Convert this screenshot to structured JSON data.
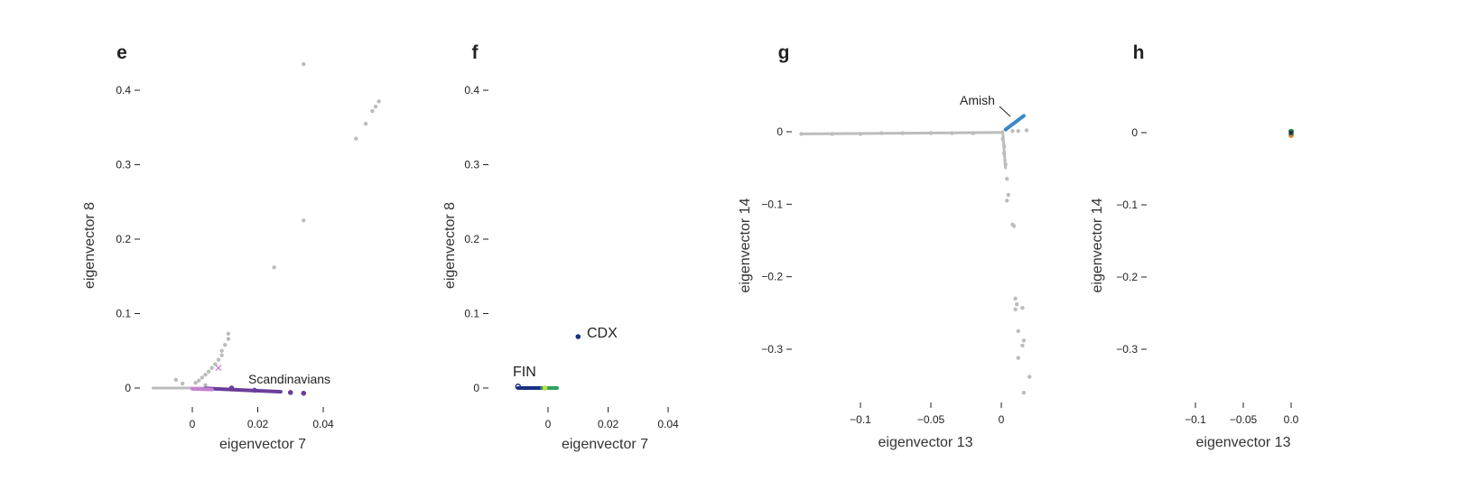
{
  "colors": {
    "grey": "#bbbdbc",
    "purple": "#6a3d9a",
    "light_purple": "#c77fd0",
    "navy": "#1a2f80",
    "green": "#2ca25f",
    "yellow_green": "#c6d93a",
    "blue": "#3a87c8",
    "orange": "#e08a2c",
    "dark_teal": "#1f5f5f"
  },
  "chart_data": [
    {
      "panel": "e",
      "type": "scatter",
      "xlabel": "eigenvector 7",
      "ylabel": "eigenvector 8",
      "xticks": [
        0,
        0.02,
        0.04
      ],
      "xtick_labels": [
        "0",
        "0.02",
        "0.04"
      ],
      "yticks": [
        0,
        0.1,
        0.2,
        0.3,
        0.4
      ],
      "ytick_labels": [
        "0",
        "0.1",
        "0.2",
        "0.3",
        "0.4"
      ],
      "xlim": [
        -0.012,
        0.066
      ],
      "ylim": [
        -0.01,
        0.44
      ],
      "annotations": [
        {
          "text": "Scandinavians"
        }
      ],
      "series": [
        {
          "color": "grey",
          "marker": "dot",
          "points": [
            [
              0.034,
              0.435
            ],
            [
              0.057,
              0.385
            ],
            [
              0.056,
              0.378
            ],
            [
              0.055,
              0.372
            ],
            [
              0.053,
              0.355
            ],
            [
              0.05,
              0.335
            ],
            [
              0.034,
              0.225
            ],
            [
              0.025,
              0.162
            ],
            [
              0.011,
              0.073
            ],
            [
              0.011,
              0.066
            ],
            [
              0.01,
              0.058
            ],
            [
              0.009,
              0.05
            ],
            [
              0.009,
              0.044
            ],
            [
              0.008,
              0.038
            ],
            [
              0.007,
              0.032
            ],
            [
              0.006,
              0.027
            ],
            [
              0.005,
              0.022
            ],
            [
              0.004,
              0.018
            ],
            [
              0.003,
              0.014
            ],
            [
              0.002,
              0.01
            ],
            [
              0.001,
              0.007
            ],
            [
              -0.005,
              0.011
            ],
            [
              -0.003,
              0.006
            ],
            [
              0.004,
              0.004
            ]
          ]
        },
        {
          "color": "grey",
          "marker": "line",
          "from": [
            -0.012,
            0.0
          ],
          "to": [
            0.005,
            0.0
          ]
        },
        {
          "color": "purple",
          "marker": "line",
          "from": [
            0.004,
            -0.0005
          ],
          "to": [
            0.027,
            -0.005
          ]
        },
        {
          "color": "purple",
          "marker": "dot",
          "points": [
            [
              0.012,
              0.0
            ],
            [
              0.019,
              -0.003
            ],
            [
              0.03,
              -0.006
            ],
            [
              0.034,
              -0.007
            ]
          ]
        },
        {
          "color": "light_purple",
          "marker": "line",
          "from": [
            0.0,
            -0.001
          ],
          "to": [
            0.006,
            -0.002
          ]
        },
        {
          "color": "light_purple",
          "marker": "cross",
          "points": [
            [
              0.008,
              0.027
            ]
          ]
        }
      ]
    },
    {
      "panel": "f",
      "type": "scatter",
      "xlabel": "eigenvector 7",
      "ylabel": "eigenvector 8",
      "xticks": [
        0,
        0.02,
        0.04
      ],
      "xtick_labels": [
        "0",
        "0.02",
        "0.04"
      ],
      "yticks": [
        0,
        0.1,
        0.2,
        0.3,
        0.4
      ],
      "ytick_labels": [
        "0",
        "0.1",
        "0.2",
        "0.3",
        "0.4"
      ],
      "xlim": [
        -0.012,
        0.045
      ],
      "ylim": [
        -0.01,
        0.44
      ],
      "annotations": [
        {
          "text": "CDX"
        },
        {
          "text": "FIN"
        }
      ],
      "series": [
        {
          "color": "navy",
          "marker": "dot",
          "points": [
            [
              0.01,
              0.069
            ]
          ]
        },
        {
          "color": "navy",
          "marker": "ring",
          "points": [
            [
              -0.01,
              0.002
            ]
          ]
        },
        {
          "color": "navy",
          "marker": "line",
          "from": [
            -0.01,
            0.0
          ],
          "to": [
            0.001,
            0.0
          ]
        },
        {
          "color": "green",
          "marker": "line",
          "from": [
            -0.002,
            0.0
          ],
          "to": [
            0.003,
            0.0
          ]
        },
        {
          "color": "yellow_green",
          "marker": "dot",
          "points": [
            [
              -0.001,
              0.0
            ]
          ]
        }
      ]
    },
    {
      "panel": "g",
      "type": "scatter",
      "xlabel": "eigenvector 13",
      "ylabel": "eigenvector 14",
      "xticks": [
        -0.1,
        -0.05,
        0
      ],
      "xtick_labels": [
        "−0.1",
        "−0.05",
        "0"
      ],
      "yticks": [
        0,
        -0.1,
        -0.2,
        -0.3
      ],
      "ytick_labels": [
        "0",
        "−0.1",
        "−0.2",
        "−0.3"
      ],
      "xlim": [
        -0.145,
        0.02
      ],
      "ylim": [
        -0.37,
        0.02
      ],
      "annotations": [
        {
          "text": "Amish"
        }
      ],
      "series": [
        {
          "color": "grey",
          "marker": "line",
          "from": [
            -0.142,
            -0.003
          ],
          "to": [
            0.0,
            -0.001
          ]
        },
        {
          "color": "grey",
          "marker": "dot",
          "points": [
            [
              -0.142,
              -0.003
            ],
            [
              -0.12,
              -0.003
            ],
            [
              -0.1,
              -0.003
            ],
            [
              -0.085,
              -0.002
            ],
            [
              -0.07,
              -0.002
            ],
            [
              -0.05,
              -0.002
            ],
            [
              -0.035,
              -0.002
            ],
            [
              -0.02,
              -0.002
            ],
            [
              0.008,
              0.001
            ],
            [
              0.012,
              0.001
            ],
            [
              0.018,
              0.002
            ],
            [
              0.001,
              -0.01
            ],
            [
              0.002,
              -0.02
            ],
            [
              0.002,
              -0.03
            ],
            [
              0.003,
              -0.045
            ],
            [
              0.004,
              -0.065
            ],
            [
              0.005,
              -0.087
            ],
            [
              0.004,
              -0.095
            ],
            [
              0.008,
              -0.128
            ],
            [
              0.009,
              -0.13
            ],
            [
              0.01,
              -0.23
            ],
            [
              0.011,
              -0.238
            ],
            [
              0.01,
              -0.245
            ],
            [
              0.015,
              -0.243
            ],
            [
              0.012,
              -0.275
            ],
            [
              0.016,
              -0.288
            ],
            [
              0.015,
              -0.295
            ],
            [
              0.012,
              -0.312
            ],
            [
              0.02,
              -0.338
            ],
            [
              0.016,
              -0.36
            ]
          ]
        },
        {
          "color": "grey",
          "marker": "line",
          "from": [
            0.001,
            0.0
          ],
          "to": [
            0.003,
            -0.05
          ]
        },
        {
          "color": "blue",
          "marker": "line",
          "from": [
            0.003,
            0.003
          ],
          "to": [
            0.016,
            0.022
          ]
        }
      ]
    },
    {
      "panel": "h",
      "type": "scatter",
      "xlabel": "eigenvector 13",
      "ylabel": "eigenvector 14",
      "xticks": [
        -0.1,
        -0.05,
        0.0
      ],
      "xtick_labels": [
        "−0.1",
        "−0.05",
        "0.0"
      ],
      "yticks": [
        0,
        -0.1,
        -0.2,
        -0.3
      ],
      "ytick_labels": [
        "0",
        "−0.1",
        "−0.2",
        "−0.3"
      ],
      "xlim": [
        -0.145,
        0.02
      ],
      "ylim": [
        -0.37,
        0.02
      ],
      "annotations": [],
      "series": [
        {
          "color": "orange",
          "marker": "dot",
          "points": [
            [
              0.0,
              -0.004
            ]
          ]
        },
        {
          "color": "green",
          "marker": "dot",
          "points": [
            [
              0.0,
              0.002
            ]
          ]
        },
        {
          "color": "dark_teal",
          "marker": "dot",
          "points": [
            [
              0.0,
              0.0
            ]
          ]
        }
      ]
    }
  ]
}
